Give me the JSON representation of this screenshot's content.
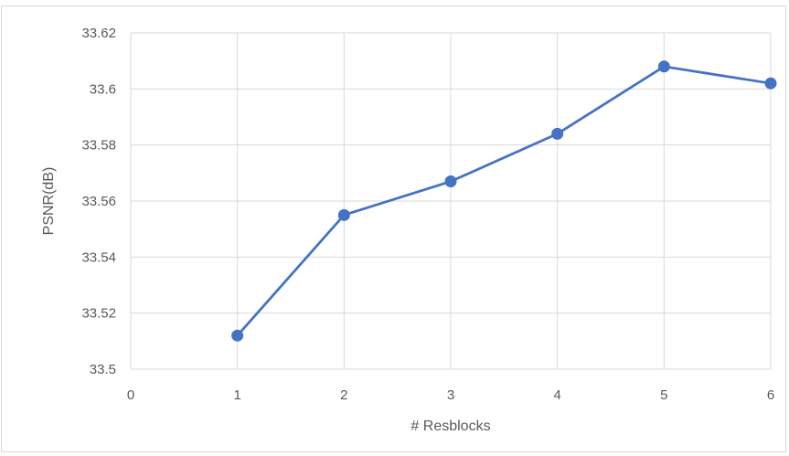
{
  "chart_data": {
    "type": "line",
    "title": "",
    "xlabel": "# Resblocks",
    "ylabel": "PSNR(dB)",
    "x_ticks": [
      "0",
      "1",
      "2",
      "3",
      "4",
      "5",
      "6"
    ],
    "y_ticks": [
      "33.5",
      "33.52",
      "33.54",
      "33.56",
      "33.58",
      "33.6",
      "33.62"
    ],
    "xlim": [
      0,
      6
    ],
    "ylim": [
      33.5,
      33.62
    ],
    "grid": true,
    "legend": "none",
    "series": [
      {
        "x": [
          1,
          2,
          3,
          4,
          5,
          6
        ],
        "y": [
          33.512,
          33.555,
          33.567,
          33.584,
          33.608,
          33.602
        ],
        "color": "#4472c4"
      }
    ],
    "colors": {
      "grid": "#d9d9d9",
      "axis_text": "#595959",
      "frame": "#d9d9d9"
    }
  }
}
